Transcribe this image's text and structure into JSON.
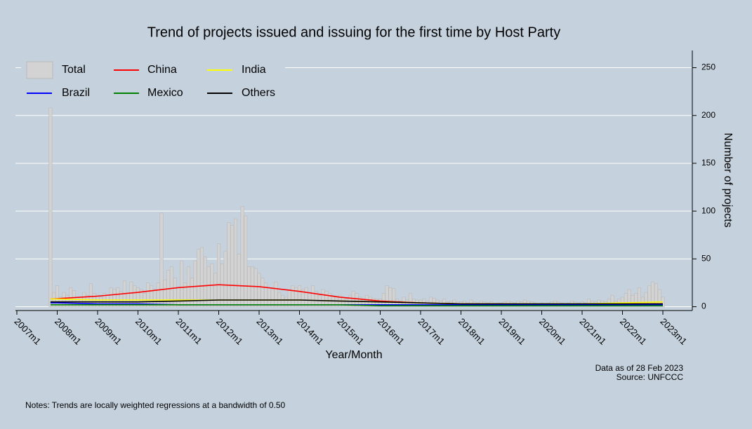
{
  "chart_data": {
    "type": "bar",
    "title": "Trend of projects issued and issuing for the first time by Host Party",
    "x_label": "Year/Month",
    "y_label": "Number of projects",
    "source": [
      "Data as of 28 Feb 2023",
      "Source: UNFCCC"
    ],
    "note": "Notes: Trends are locally weighted regressions at a bandwidth of 0.50",
    "legend": "top-left",
    "grid": true,
    "xlim": [
      "2007m1",
      "2023m6"
    ],
    "xticks": [
      "2007m1",
      "2008m1",
      "2009m1",
      "2010m1",
      "2011m1",
      "2012m1",
      "2013m1",
      "2014m1",
      "2015m1",
      "2016m1",
      "2017m1",
      "2018m1",
      "2019m1",
      "2020m1",
      "2021m1",
      "2022m1",
      "2023m1"
    ],
    "ylim": [
      -4,
      268
    ],
    "yticks": [
      0,
      50,
      100,
      150,
      200,
      250
    ],
    "x": [
      "2007m11",
      "2007m12",
      "2008m1",
      "2008m2",
      "2008m3",
      "2008m4",
      "2008m5",
      "2008m6",
      "2008m7",
      "2008m8",
      "2008m9",
      "2008m10",
      "2008m11",
      "2008m12",
      "2009m1",
      "2009m2",
      "2009m3",
      "2009m4",
      "2009m5",
      "2009m6",
      "2009m7",
      "2009m8",
      "2009m9",
      "2009m10",
      "2009m11",
      "2009m12",
      "2010m1",
      "2010m2",
      "2010m3",
      "2010m4",
      "2010m5",
      "2010m6",
      "2010m7",
      "2010m8",
      "2010m9",
      "2010m10",
      "2010m11",
      "2010m12",
      "2011m1",
      "2011m2",
      "2011m3",
      "2011m4",
      "2011m5",
      "2011m6",
      "2011m7",
      "2011m8",
      "2011m9",
      "2011m10",
      "2011m11",
      "2011m12",
      "2012m1",
      "2012m2",
      "2012m3",
      "2012m4",
      "2012m5",
      "2012m6",
      "2012m7",
      "2012m8",
      "2012m9",
      "2012m10",
      "2012m11",
      "2012m12",
      "2013m1",
      "2013m2",
      "2013m3",
      "2013m4",
      "2013m5",
      "2013m6",
      "2013m7",
      "2013m8",
      "2013m9",
      "2013m10",
      "2013m11",
      "2013m12",
      "2014m1",
      "2014m2",
      "2014m3",
      "2014m4",
      "2014m5",
      "2014m6",
      "2014m7",
      "2014m8",
      "2014m9",
      "2014m10",
      "2014m11",
      "2014m12",
      "2015m1",
      "2015m2",
      "2015m3",
      "2015m4",
      "2015m5",
      "2015m6",
      "2015m7",
      "2015m8",
      "2015m9",
      "2015m10",
      "2015m11",
      "2015m12",
      "2016m1",
      "2016m2",
      "2016m3",
      "2016m4",
      "2016m5",
      "2016m6",
      "2016m7",
      "2016m8",
      "2016m9",
      "2016m10",
      "2016m11",
      "2016m12",
      "2017m1",
      "2017m2",
      "2017m3",
      "2017m4",
      "2017m5",
      "2017m6",
      "2017m7",
      "2017m8",
      "2017m9",
      "2017m10",
      "2017m11",
      "2017m12",
      "2018m1",
      "2018m2",
      "2018m3",
      "2018m4",
      "2018m5",
      "2018m6",
      "2018m7",
      "2018m8",
      "2018m9",
      "2018m10",
      "2018m11",
      "2018m12",
      "2019m1",
      "2019m2",
      "2019m3",
      "2019m4",
      "2019m5",
      "2019m6",
      "2019m7",
      "2019m8",
      "2019m9",
      "2019m10",
      "2019m11",
      "2019m12",
      "2020m1",
      "2020m2",
      "2020m3",
      "2020m4",
      "2020m5",
      "2020m6",
      "2020m7",
      "2020m8",
      "2020m9",
      "2020m10",
      "2020m11",
      "2020m12",
      "2021m1",
      "2021m2",
      "2021m3",
      "2021m4",
      "2021m5",
      "2021m6",
      "2021m7",
      "2021m8",
      "2021m9",
      "2021m10",
      "2021m11",
      "2021m12",
      "2022m1",
      "2022m2",
      "2022m3",
      "2022m4",
      "2022m5",
      "2022m6",
      "2022m7",
      "2022m8",
      "2022m9",
      "2022m10",
      "2022m11",
      "2022m12",
      "2023m1"
    ],
    "series": [
      {
        "name": "Total",
        "type": "bar",
        "color": "#d3d3d3",
        "values": [
          208,
          15,
          22,
          10,
          15,
          12,
          20,
          17,
          8,
          10,
          15,
          12,
          24,
          14,
          12,
          10,
          14,
          12,
          20,
          18,
          20,
          16,
          27,
          14,
          26,
          22,
          20,
          18,
          14,
          25,
          22,
          18,
          25,
          98,
          28,
          38,
          42,
          30,
          20,
          48,
          25,
          42,
          30,
          48,
          60,
          62,
          52,
          42,
          45,
          35,
          66,
          45,
          58,
          88,
          85,
          92,
          55,
          105,
          95,
          42,
          42,
          40,
          35,
          30,
          25,
          20,
          18,
          26,
          15,
          12,
          10,
          18,
          22,
          20,
          22,
          18,
          20,
          15,
          22,
          16,
          12,
          18,
          16,
          14,
          12,
          10,
          12,
          10,
          8,
          12,
          16,
          14,
          10,
          8,
          12,
          10,
          9,
          8,
          8,
          14,
          22,
          20,
          19,
          8,
          6,
          10,
          7,
          14,
          8,
          7,
          7,
          8,
          6,
          10,
          9,
          7,
          6,
          8,
          5,
          6,
          7,
          5,
          5,
          6,
          4,
          7,
          5,
          4,
          6,
          5,
          4,
          5,
          3,
          4,
          4,
          5,
          6,
          5,
          4,
          6,
          5,
          7,
          6,
          5,
          4,
          3,
          4,
          3,
          4,
          5,
          6,
          5,
          4,
          3,
          4,
          6,
          5,
          4,
          5,
          4,
          8,
          6,
          5,
          7,
          6,
          5,
          8,
          12,
          6,
          8,
          10,
          14,
          18,
          12,
          14,
          20,
          10,
          15,
          22,
          26,
          24,
          18,
          10
        ]
      },
      {
        "name": "China",
        "type": "line",
        "color": "#ff0000",
        "x": [
          "2007m11",
          "2008m1",
          "2009m1",
          "2010m1",
          "2011m1",
          "2012m1",
          "2013m1",
          "2014m1",
          "2015m1",
          "2016m1",
          "2017m1",
          "2018m1",
          "2019m1",
          "2020m1",
          "2021m1",
          "2022m1",
          "2023m1"
        ],
        "values": [
          8,
          8.5,
          11,
          15,
          20,
          23,
          21,
          16,
          10,
          6,
          4,
          3,
          3,
          2.5,
          2.5,
          3,
          3
        ]
      },
      {
        "name": "India",
        "type": "line",
        "color": "#ffff00",
        "x": [
          "2007m11",
          "2008m1",
          "2009m1",
          "2010m1",
          "2011m1",
          "2012m1",
          "2013m1",
          "2014m1",
          "2015m1",
          "2016m1",
          "2017m1",
          "2018m1",
          "2019m1",
          "2020m1",
          "2021m1",
          "2022m1",
          "2023m1"
        ],
        "values": [
          8,
          8,
          7,
          7,
          7,
          7,
          7,
          7,
          6,
          5,
          4,
          3,
          3,
          3,
          3,
          4,
          5
        ]
      },
      {
        "name": "Brazil",
        "type": "line",
        "color": "#0000ff",
        "x": [
          "2007m11",
          "2008m1",
          "2009m1",
          "2010m1",
          "2011m1",
          "2012m1",
          "2013m1",
          "2014m1",
          "2015m1",
          "2016m1",
          "2017m1",
          "2018m1",
          "2019m1",
          "2020m1",
          "2021m1",
          "2022m1",
          "2023m1"
        ],
        "values": [
          4,
          4,
          3,
          3,
          2,
          2,
          2,
          2,
          2,
          2,
          2,
          2,
          2,
          2,
          2,
          2,
          2
        ]
      },
      {
        "name": "Mexico",
        "type": "line",
        "color": "#008000",
        "x": [
          "2007m11",
          "2008m1",
          "2009m1",
          "2010m1",
          "2011m1",
          "2012m1",
          "2013m1",
          "2014m1",
          "2015m1",
          "2016m1",
          "2017m1",
          "2018m1",
          "2019m1",
          "2020m1",
          "2021m1",
          "2022m1",
          "2023m1"
        ],
        "values": [
          2,
          2,
          2,
          2,
          2,
          2,
          2,
          2,
          2,
          1,
          1,
          1,
          1,
          1,
          1,
          1,
          1
        ]
      },
      {
        "name": "Others",
        "type": "line",
        "color": "#000000",
        "x": [
          "2007m11",
          "2008m1",
          "2009m1",
          "2010m1",
          "2011m1",
          "2012m1",
          "2013m1",
          "2014m1",
          "2015m1",
          "2016m1",
          "2017m1",
          "2018m1",
          "2019m1",
          "2020m1",
          "2021m1",
          "2022m1",
          "2023m1"
        ],
        "values": [
          5,
          5,
          5,
          5,
          6,
          7,
          7,
          7,
          6,
          5,
          4,
          3,
          3,
          3,
          3,
          3,
          3
        ]
      }
    ]
  }
}
